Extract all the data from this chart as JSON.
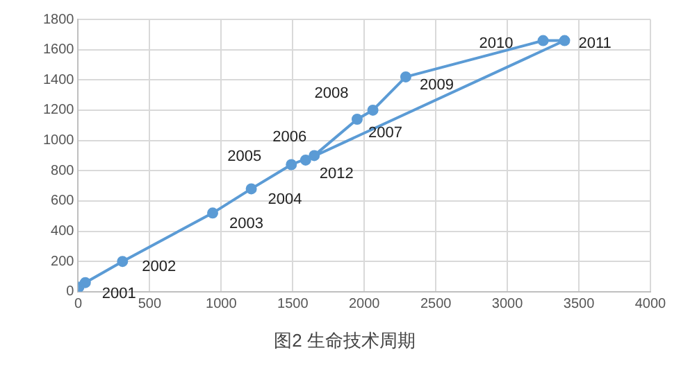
{
  "chart_data": {
    "type": "line",
    "title": "图2 生命技术周期",
    "x": [
      5,
      50,
      310,
      940,
      1210,
      1490,
      1650,
      1950,
      2060,
      2290,
      3250,
      3400,
      1590
    ],
    "series": [
      {
        "color": "#5b9bd5",
        "values": [
          30,
          60,
          200,
          520,
          680,
          840,
          900,
          1140,
          1200,
          1420,
          1660,
          1660,
          870
        ]
      }
    ],
    "xlim": [
      0,
      4000
    ],
    "xticks": [
      0,
      500,
      1000,
      1500,
      2000,
      2500,
      3000,
      3500,
      4000
    ],
    "ylim": [
      0,
      1800
    ],
    "yticks": [
      0,
      200,
      400,
      600,
      800,
      1000,
      1200,
      1400,
      1600,
      1800
    ],
    "grid": true,
    "legend": false,
    "marker": "circle",
    "line_style": "solid",
    "annotations": [
      {
        "text": "2001",
        "x": 50,
        "y": 60
      },
      {
        "text": "2002",
        "x": 310,
        "y": 200
      },
      {
        "text": "2003",
        "x": 940,
        "y": 520
      },
      {
        "text": "2004",
        "x": 1210,
        "y": 680
      },
      {
        "text": "2005",
        "x": 1490,
        "y": 840
      },
      {
        "text": "2006",
        "x": 1650,
        "y": 900
      },
      {
        "text": "2007",
        "x": 1950,
        "y": 1140
      },
      {
        "text": "2008",
        "x": 2060,
        "y": 1200
      },
      {
        "text": "2009",
        "x": 2290,
        "y": 1420
      },
      {
        "text": "2010",
        "x": 3250,
        "y": 1660
      },
      {
        "text": "2011",
        "x": 3400,
        "y": 1660
      },
      {
        "text": "2012",
        "x": 1590,
        "y": 870
      }
    ]
  }
}
